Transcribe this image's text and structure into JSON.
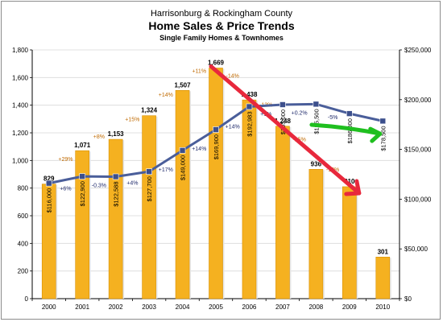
{
  "colors": {
    "bar": "#f5b120",
    "bar_dark": "#d88f00",
    "line": "#4a5e9a",
    "marker": "#3c4f8c",
    "red_arrow": "#e8283c",
    "green_arrow": "#1fbf1f",
    "grid": "#d9d9d9",
    "bar_pct_text": "#c06a00",
    "price_pct_text": "#1f2a6b"
  },
  "chart_data": {
    "type": "bar",
    "title_line1": "Harrisonburg & Rockingham County",
    "title": "Home Sales & Price Trends",
    "subtitle": "Single Family Homes & Townhomes",
    "categories": [
      "2000",
      "2001",
      "2002",
      "2003",
      "2004",
      "2005",
      "2006",
      "2007",
      "2008",
      "2009",
      "2010"
    ],
    "left_axis": {
      "ylim": [
        0,
        1800
      ],
      "ticks": [
        0,
        200,
        400,
        600,
        800,
        1000,
        1200,
        1400,
        1600,
        1800
      ],
      "tick_labels": [
        "0",
        "200",
        "400",
        "600",
        "800",
        "1,000",
        "1,200",
        "1,400",
        "1,600",
        "1,800"
      ]
    },
    "right_axis": {
      "ylim": [
        0,
        250000
      ],
      "ticks": [
        0,
        50000,
        100000,
        150000,
        200000,
        250000
      ],
      "tick_labels": [
        "$0",
        "$50,000",
        "$100,000",
        "$150,000",
        "$200,000",
        "$250,000"
      ]
    },
    "series": [
      {
        "kind": "bar",
        "axis": "left",
        "values": [
          829,
          1071,
          1153,
          1324,
          1507,
          1669,
          1438,
          1248,
          936,
          810,
          301
        ],
        "labels": [
          "829",
          "1,071",
          "1,153",
          "1,324",
          "1,507",
          "1,669",
          "1,438",
          "1,248",
          "936",
          "810",
          "301"
        ],
        "pct_changes": [
          "",
          "+29%",
          "+8%",
          "+15%",
          "+14%",
          "+11%",
          "-14%",
          "-13%",
          "-25%",
          "-13%",
          ""
        ]
      },
      {
        "kind": "line",
        "axis": "right",
        "values": [
          116000,
          122900,
          122588,
          127700,
          149000,
          169900,
          192983,
          195000,
          195500,
          186000,
          178500
        ],
        "labels": [
          "$116,000",
          "$122,900",
          "$122,588",
          "$127,700",
          "$149,000",
          "$169,900",
          "$192,983",
          "$195,000",
          "$195,500",
          "$186,000",
          "$178,500"
        ],
        "pct_changes": [
          "",
          "+6%",
          "-0.3%",
          "+4%",
          "+17%",
          "+14%",
          "+14%",
          "+1%",
          "+0.2%",
          "-5%",
          ""
        ]
      }
    ],
    "grid": true,
    "legend": "none"
  }
}
